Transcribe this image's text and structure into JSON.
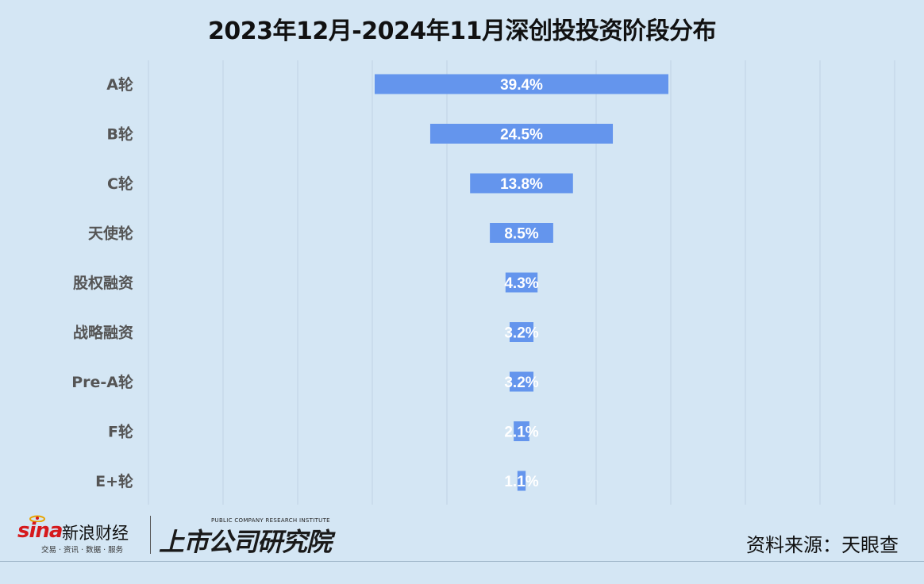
{
  "chart_data": {
    "type": "bar",
    "title": "2023年12月-2024年11月深创投投资阶段分布",
    "categories": [
      "A轮",
      "B轮",
      "C轮",
      "天使轮",
      "股权融资",
      "战略融资",
      "Pre-A轮",
      "F轮",
      "E+轮"
    ],
    "values": [
      39.4,
      24.5,
      13.8,
      8.5,
      4.3,
      3.2,
      3.2,
      2.1,
      1.1
    ],
    "value_labels": [
      "39.4%",
      "24.5%",
      "13.8%",
      "8.5%",
      "4.3%",
      "3.2%",
      "3.2%",
      "2.1%",
      "1.1%"
    ],
    "orientation": "horizontal",
    "alignment": "centered",
    "bar_color": "#6495ed",
    "grid": "vertical",
    "legend": "none"
  },
  "footer": {
    "sina_brand": "sina",
    "sina_name": "新浪财经",
    "sina_tagline": "交易 · 资讯 · 数据 · 服务",
    "institute_en": "PUBLIC COMPANY RESEARCH INSTITUTE",
    "institute_cn": "上市公司研究院",
    "source": "资料来源：天眼查"
  }
}
